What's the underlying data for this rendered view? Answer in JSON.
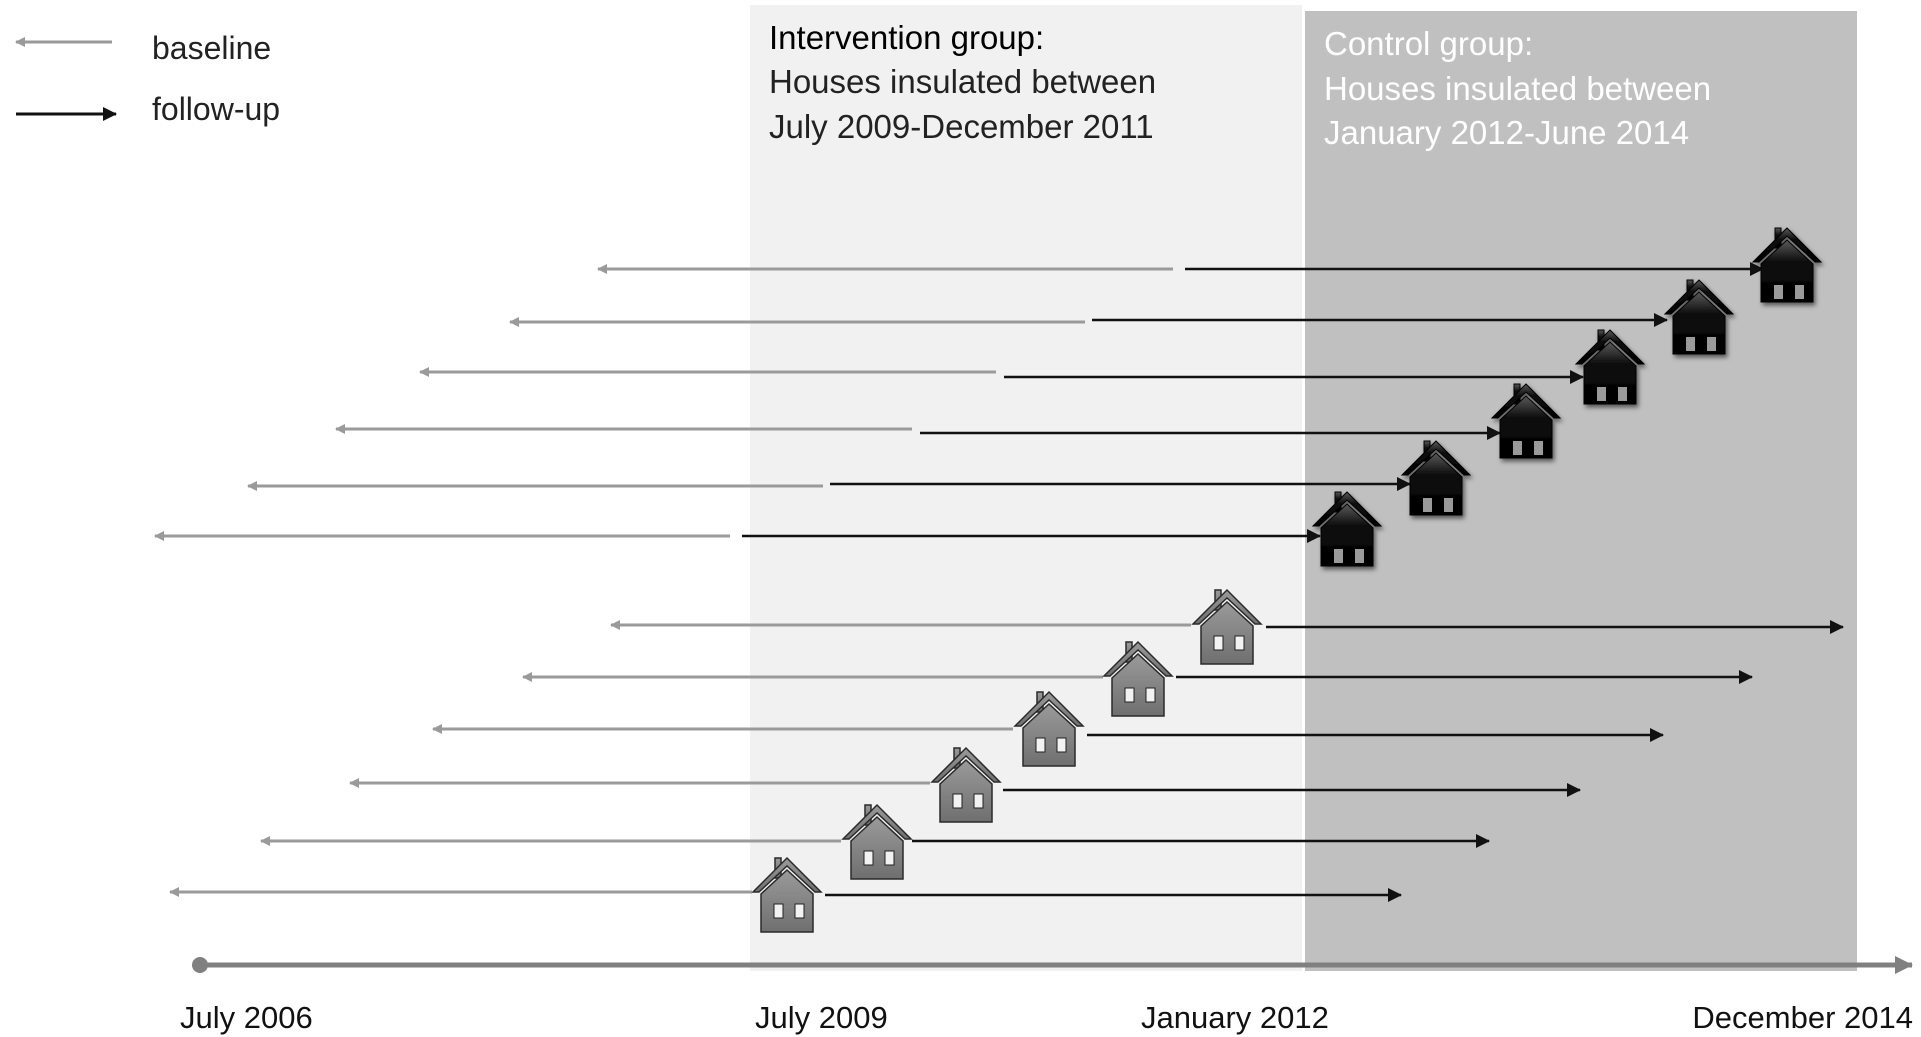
{
  "legend": {
    "baseline_label": "baseline",
    "followup_label": "follow-up"
  },
  "intervention": {
    "title": "Intervention group",
    "colon": ":",
    "line1": "Houses insulated between",
    "line2": "July 2009-December 2011"
  },
  "control": {
    "title": "Control group",
    "colon": ":",
    "line1": "Houses insulated between",
    "line2": "January 2012-June 2014"
  },
  "timeline": {
    "labels": [
      "July 2006",
      "July 2009",
      "January 2012",
      "December 2014"
    ]
  },
  "colors": {
    "baseline_arrow": "#9a9a9a",
    "followup_arrow": "#111111",
    "intervention_bg": "#f1f1f1",
    "control_bg": "#c0c0c0",
    "control_text": "#ffffff",
    "intervention_house": "#808080",
    "control_house": "#0d0d0d",
    "axis": "#808080"
  },
  "icons": {
    "intervention_house": "house-icon",
    "control_house": "house-icon"
  }
}
